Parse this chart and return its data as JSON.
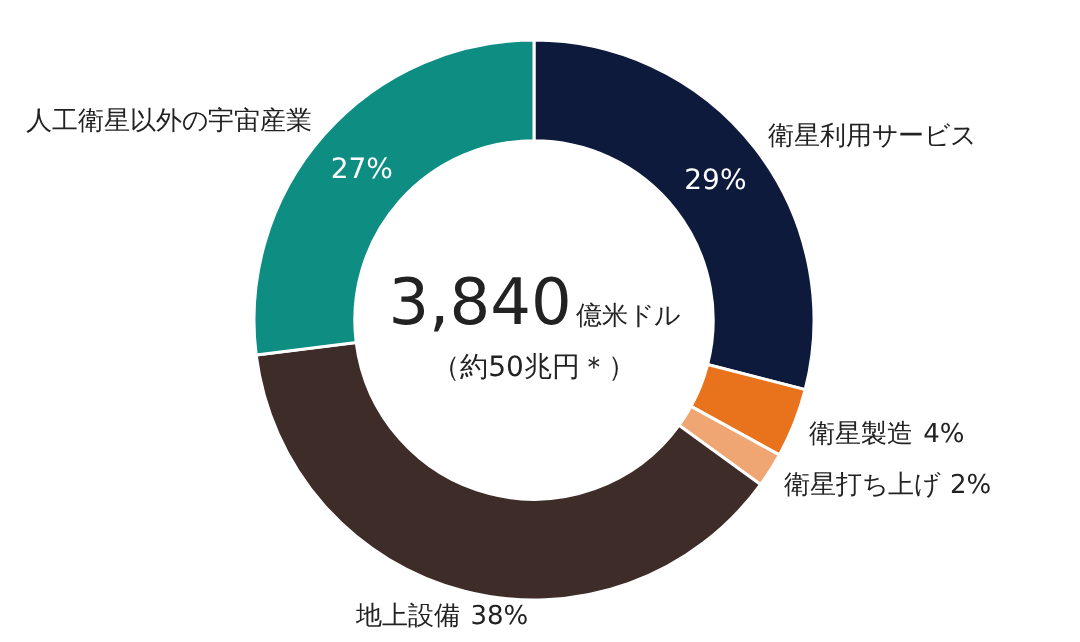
{
  "chart_data": {
    "type": "donut",
    "title": "3,840",
    "subtitle": "億米ドル",
    "annotations": [
      "（約50兆円＊）"
    ],
    "categories": [
      "衛星利用サービス",
      "衛星製造",
      "衛星打ち上げ",
      "地上設備",
      "人工衛星以外の宇宙産業"
    ],
    "values": [
      29,
      4,
      2,
      38,
      27
    ],
    "colors": [
      "#0d1a3c",
      "#e8731c",
      "#f0a672",
      "#3e2c28",
      "#0e8e82"
    ],
    "value_labels": [
      "29%",
      "4%",
      "2%",
      "38%",
      "27%"
    ],
    "legend": false
  }
}
